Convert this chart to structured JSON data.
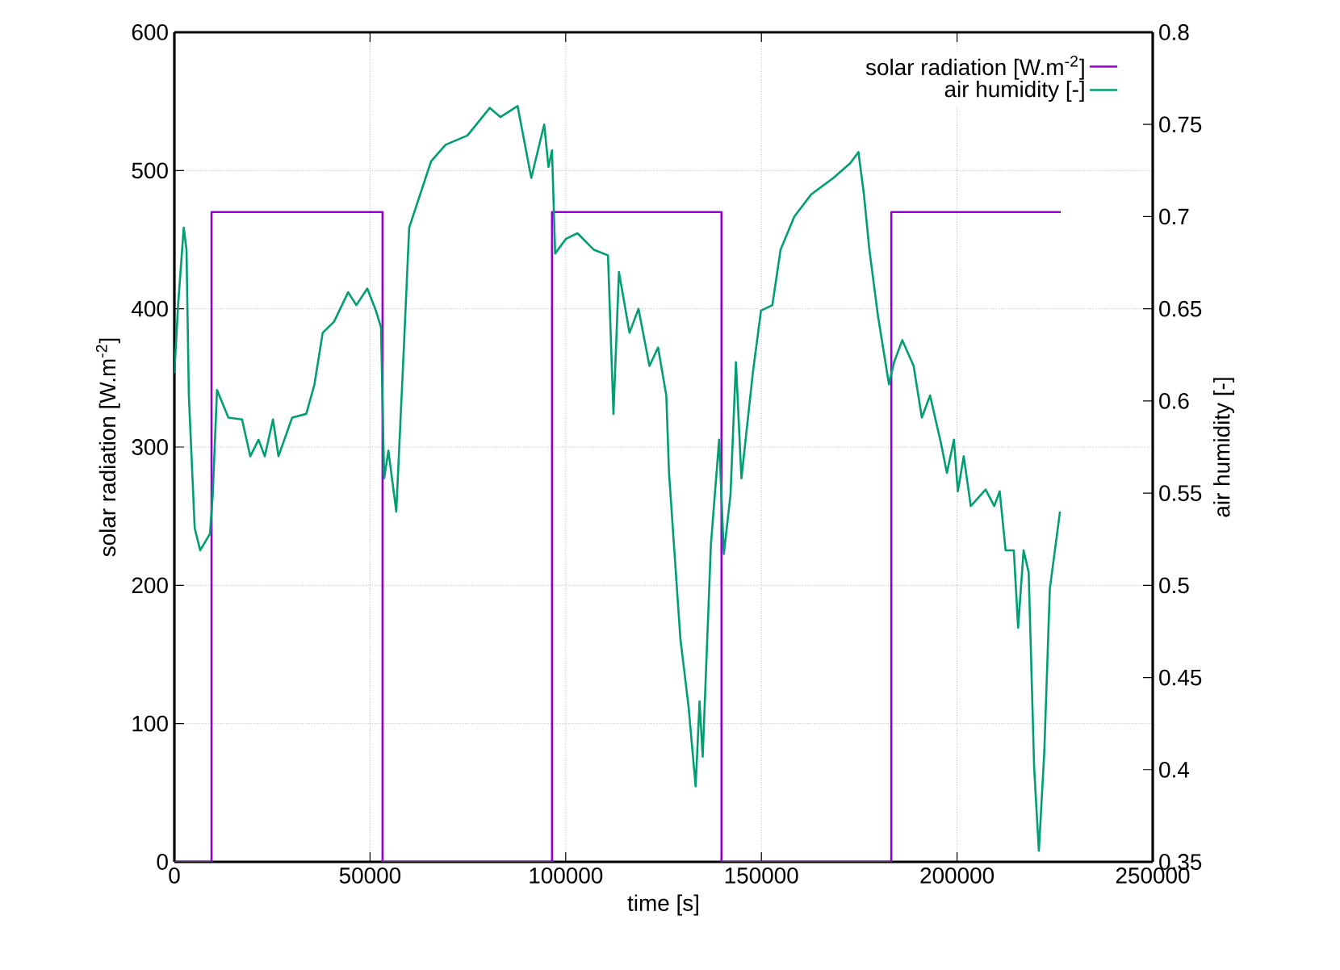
{
  "chart_data": {
    "type": "line",
    "xlabel": "time [s]",
    "ylabel": "solar radiation [W.m$^{-2}$]",
    "y2label": "air humidity [-]",
    "xlim": [
      0,
      250000
    ],
    "xticks": [
      0,
      50000,
      100000,
      150000,
      200000,
      250000
    ],
    "ylim": [
      0,
      600
    ],
    "yticks": [
      0,
      100,
      200,
      300,
      400,
      500,
      600
    ],
    "y2lim": [
      0.35,
      0.8
    ],
    "y2ticks": [
      0.35,
      0.4,
      0.45,
      0.5,
      0.55,
      0.6,
      0.65,
      0.7,
      0.75,
      0.8
    ],
    "grid": true,
    "legend": "top right",
    "marker": "none",
    "line_style": "solid",
    "series": [
      {
        "name": "solar radiation [W.m$^{-2}$]",
        "type": "step",
        "color": "#9400d3",
        "x": [
          0,
          9500,
          53200,
          96500,
          139800,
          183200,
          226500
        ],
        "values": [
          0,
          470,
          0,
          470,
          0,
          470,
          470
        ]
      },
      {
        "name": "air humidity [-]",
        "axis": "y2",
        "color": "#009e73",
        "x": [
          0,
          950,
          2400,
          3100,
          3700,
          5200,
          6600,
          9100,
          9800,
          10900,
          13800,
          17300,
          19400,
          21500,
          23100,
          25200,
          26600,
          30100,
          33700,
          35800,
          37900,
          40800,
          44400,
          46500,
          49300,
          51500,
          52800,
          53600,
          54700,
          56700,
          58600,
          60000,
          62800,
          65600,
          69300,
          74900,
          80600,
          83300,
          87700,
          91200,
          94500,
          95600,
          96500,
          97300,
          100100,
          103000,
          107200,
          110800,
          112200,
          113600,
          116300,
          118600,
          121400,
          123600,
          125700,
          126400,
          129300,
          131400,
          133200,
          134200,
          135000,
          137100,
          139200,
          140400,
          142100,
          143500,
          144900,
          147800,
          149900,
          152800,
          154900,
          158400,
          162700,
          168400,
          172700,
          174800,
          176200,
          177600,
          179800,
          182600,
          183900,
          186000,
          188900,
          191000,
          193100,
          196000,
          197400,
          199200,
          200200,
          201700,
          203500,
          207300,
          209500,
          210900,
          212400,
          214500,
          215600,
          217000,
          218300,
          219700,
          220900,
          222300,
          223700,
          226300
        ],
        "values": [
          0.615,
          0.652,
          0.694,
          0.682,
          0.603,
          0.531,
          0.519,
          0.528,
          0.549,
          0.606,
          0.591,
          0.59,
          0.57,
          0.579,
          0.57,
          0.59,
          0.57,
          0.591,
          0.593,
          0.609,
          0.637,
          0.643,
          0.659,
          0.652,
          0.661,
          0.649,
          0.64,
          0.558,
          0.573,
          0.54,
          0.627,
          0.694,
          0.712,
          0.73,
          0.739,
          0.744,
          0.759,
          0.754,
          0.76,
          0.721,
          0.75,
          0.727,
          0.736,
          0.68,
          0.688,
          0.691,
          0.682,
          0.679,
          0.593,
          0.67,
          0.637,
          0.65,
          0.619,
          0.629,
          0.603,
          0.561,
          0.471,
          0.434,
          0.391,
          0.437,
          0.407,
          0.522,
          0.579,
          0.517,
          0.549,
          0.621,
          0.558,
          0.615,
          0.649,
          0.652,
          0.682,
          0.7,
          0.712,
          0.721,
          0.729,
          0.735,
          0.712,
          0.682,
          0.646,
          0.609,
          0.621,
          0.633,
          0.619,
          0.591,
          0.603,
          0.576,
          0.561,
          0.579,
          0.551,
          0.57,
          0.543,
          0.552,
          0.543,
          0.551,
          0.519,
          0.519,
          0.477,
          0.519,
          0.507,
          0.401,
          0.356,
          0.41,
          0.498,
          0.54
        ]
      }
    ]
  }
}
